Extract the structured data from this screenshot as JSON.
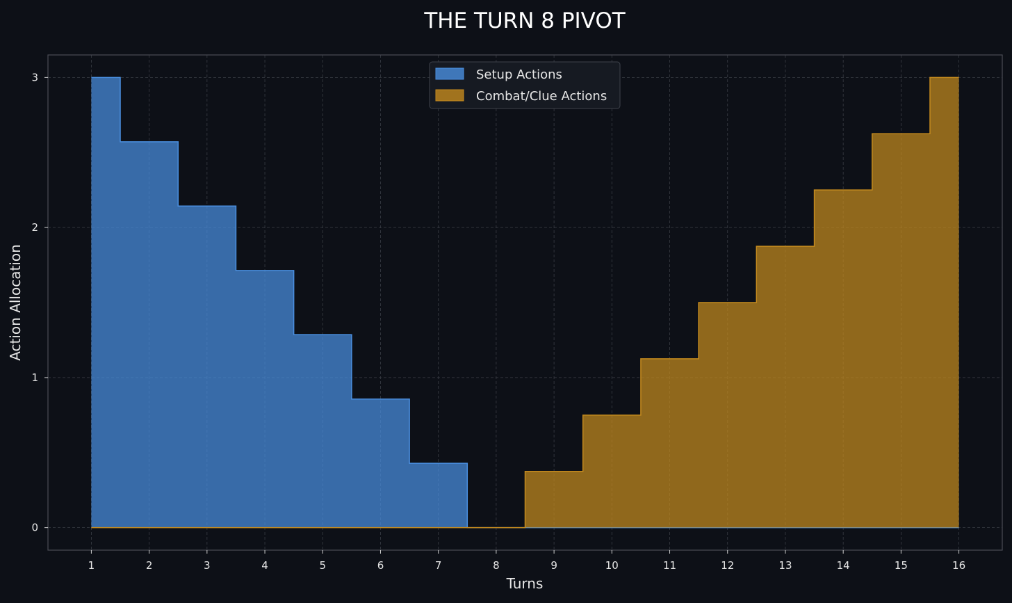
{
  "chart_data": {
    "type": "area",
    "step": "mid",
    "title": "THE TURN 8 PIVOT",
    "xlabel": "Turns",
    "ylabel": "Action Allocation",
    "x": [
      1,
      2,
      3,
      4,
      5,
      6,
      7,
      8,
      9,
      10,
      11,
      12,
      13,
      14,
      15,
      16
    ],
    "xlim": [
      0.25,
      16.75
    ],
    "ylim": [
      -0.15,
      3.15
    ],
    "yticks": [
      0,
      1,
      2,
      3
    ],
    "grid": true,
    "legend_position": "top-center",
    "series": [
      {
        "name": "Setup Actions",
        "color": "#4a8fe0",
        "values": [
          3,
          2.571,
          2.143,
          1.714,
          1.286,
          0.857,
          0.429,
          0,
          0,
          0,
          0,
          0,
          0,
          0,
          0,
          0
        ]
      },
      {
        "name": "Combat/Clue Actions",
        "color": "#c48a1e",
        "values": [
          0,
          0,
          0,
          0,
          0,
          0,
          0,
          0,
          0.375,
          0.75,
          1.125,
          1.5,
          1.875,
          2.25,
          2.625,
          3
        ]
      }
    ]
  }
}
